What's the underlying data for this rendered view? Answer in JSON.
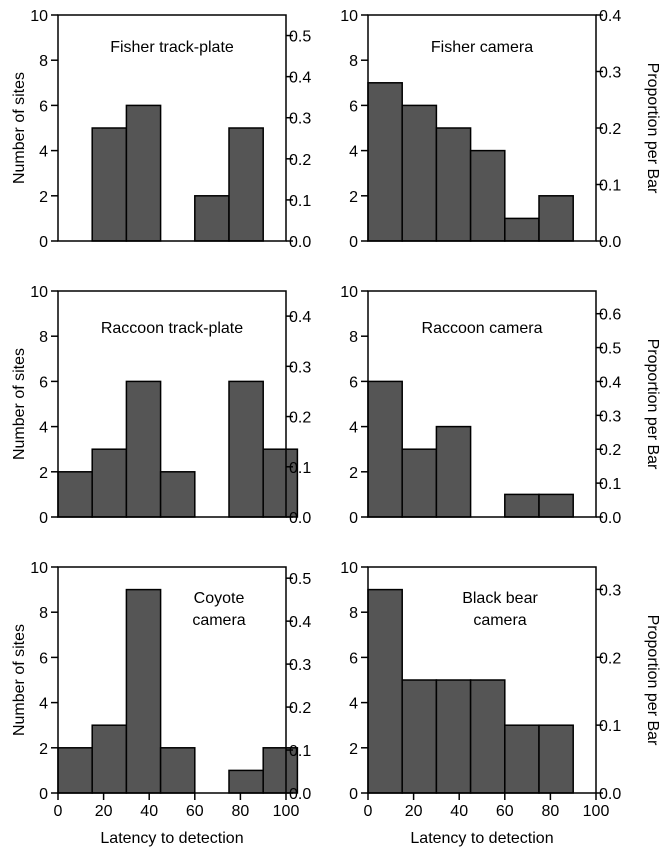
{
  "chart_data": [
    {
      "type": "bar",
      "title": [
        "Fisher track-plate"
      ],
      "x": [
        10,
        20,
        30,
        40,
        50,
        60,
        70,
        80,
        90
      ],
      "bins": [
        [
          0,
          15
        ],
        [
          15,
          30
        ],
        [
          30,
          45
        ],
        [
          45,
          60
        ],
        [
          60,
          75
        ],
        [
          75,
          90
        ],
        [
          90,
          105
        ],
        [
          105,
          120
        ],
        [
          120,
          135
        ]
      ],
      "values": [
        0,
        5,
        6,
        0,
        2,
        5,
        0,
        0,
        0
      ],
      "ylabel": "Number of sites",
      "xlabel": "",
      "y2label": "",
      "ylim": [
        0,
        10
      ],
      "y2lim": [
        0,
        0.55
      ],
      "yticks": [
        0,
        2,
        4,
        6,
        8,
        10
      ],
      "y2ticks": [
        "0.0",
        "0.1",
        "0.2",
        "0.3",
        "0.4",
        "0.5"
      ],
      "xticks": [],
      "grid": false
    },
    {
      "type": "bar",
      "title": [
        "Fisher camera"
      ],
      "bins": [
        [
          0,
          15
        ],
        [
          15,
          30
        ],
        [
          30,
          45
        ],
        [
          45,
          60
        ],
        [
          60,
          75
        ],
        [
          75,
          90
        ]
      ],
      "values": [
        7,
        6,
        5,
        4,
        1,
        2
      ],
      "ylabel": "",
      "xlabel": "",
      "y2label": "Proportion per Bar",
      "ylim": [
        0,
        10
      ],
      "y2lim": [
        0,
        0.4
      ],
      "yticks": [
        0,
        2,
        4,
        6,
        8,
        10
      ],
      "y2ticks": [
        "0.0",
        "0.1",
        "0.2",
        "0.3",
        "0.4"
      ],
      "xticks": [],
      "grid": false
    },
    {
      "type": "bar",
      "title": [
        "Raccoon track-plate"
      ],
      "bins": [
        [
          0,
          15
        ],
        [
          15,
          30
        ],
        [
          30,
          45
        ],
        [
          45,
          60
        ],
        [
          60,
          75
        ],
        [
          75,
          90
        ],
        [
          90,
          105
        ]
      ],
      "values": [
        2,
        3,
        6,
        2,
        0,
        6,
        3
      ],
      "ylabel": "Number of sites",
      "xlabel": "",
      "y2label": "",
      "ylim": [
        0,
        10
      ],
      "y2lim": [
        0,
        0.45
      ],
      "yticks": [
        0,
        2,
        4,
        6,
        8,
        10
      ],
      "y2ticks": [
        "0.0",
        "0.1",
        "0.2",
        "0.3",
        "0.4"
      ],
      "xticks": [],
      "grid": false
    },
    {
      "type": "bar",
      "title": [
        "Raccoon camera"
      ],
      "bins": [
        [
          0,
          15
        ],
        [
          15,
          30
        ],
        [
          30,
          45
        ],
        [
          45,
          60
        ],
        [
          60,
          75
        ],
        [
          75,
          90
        ]
      ],
      "values": [
        6,
        3,
        4,
        0,
        1,
        1
      ],
      "ylabel": "",
      "xlabel": "",
      "y2label": "Proportion per Bar",
      "ylim": [
        0,
        10
      ],
      "y2lim": [
        0,
        0.667
      ],
      "yticks": [
        0,
        2,
        4,
        6,
        8,
        10
      ],
      "y2ticks": [
        "0.0",
        "0.1",
        "0.2",
        "0.3",
        "0.4",
        "0.5",
        "0.6"
      ],
      "xticks": [],
      "grid": false
    },
    {
      "type": "bar",
      "title": [
        "Coyote",
        "camera"
      ],
      "bins": [
        [
          0,
          15
        ],
        [
          15,
          30
        ],
        [
          30,
          45
        ],
        [
          45,
          60
        ],
        [
          60,
          75
        ],
        [
          75,
          90
        ],
        [
          90,
          105
        ]
      ],
      "values": [
        2,
        3,
        9,
        2,
        0,
        1,
        2
      ],
      "ylabel": "Number of sites",
      "xlabel": "Latency to detection",
      "y2label": "",
      "ylim": [
        0,
        10
      ],
      "y2lim": [
        0,
        0.526
      ],
      "yticks": [
        0,
        2,
        4,
        6,
        8,
        10
      ],
      "y2ticks": [
        "0.0",
        "0.1",
        "0.2",
        "0.3",
        "0.4",
        "0.5"
      ],
      "xticks": [
        0,
        20,
        40,
        60,
        80,
        100
      ],
      "grid": false
    },
    {
      "type": "bar",
      "title": [
        "Black bear",
        "camera"
      ],
      "bins": [
        [
          0,
          15
        ],
        [
          15,
          30
        ],
        [
          30,
          45
        ],
        [
          45,
          60
        ],
        [
          60,
          75
        ],
        [
          75,
          90
        ]
      ],
      "values": [
        9,
        5,
        5,
        5,
        3,
        3
      ],
      "ylabel": "",
      "xlabel": "Latency to detection",
      "y2label": "Proportion per Bar",
      "ylim": [
        0,
        10
      ],
      "y2lim": [
        0,
        0.333
      ],
      "yticks": [
        0,
        2,
        4,
        6,
        8,
        10
      ],
      "y2ticks": [
        "0.0",
        "0.1",
        "0.2",
        "0.3"
      ],
      "xticks": [
        0,
        20,
        40,
        60,
        80,
        100
      ],
      "grid": false
    }
  ],
  "colors": {
    "bar_fill": "#555555",
    "bar_stroke": "#000000",
    "axis": "#000000"
  }
}
